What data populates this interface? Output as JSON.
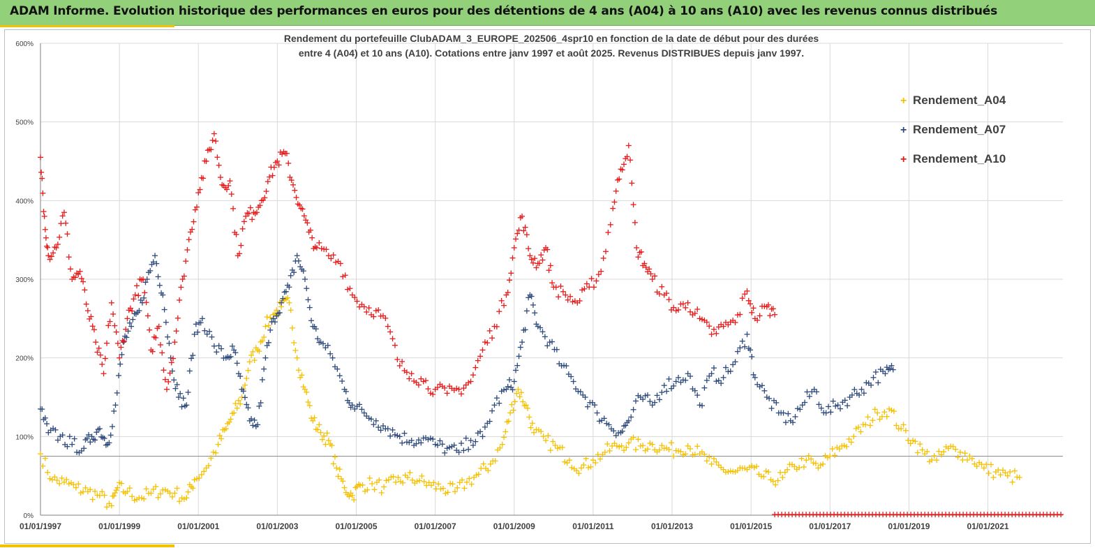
{
  "header": {
    "title": "ADAM Informe. Evolution historique des performances en euros pour des détentions de 4 ans (A04) à 10 ans (A10) avec les revenus connus distribués"
  },
  "chart_data": {
    "type": "scatter",
    "title_line1": "Rendement du portefeuille ClubADAM_3_EUROPE_202506_4spr10  en fonction de la date de début pour des durées",
    "title_line2": "entre 4 (A04) et 10 ans (A10). Cotations entre janv 1997 et août 2025. Revenus DISTRIBUES depuis janv 1997.",
    "xlabel": "",
    "ylabel": "",
    "x_ticks": [
      "01/01/1997",
      "01/01/1999",
      "01/01/2001",
      "01/01/2003",
      "01/01/2005",
      "01/01/2007",
      "01/01/2009",
      "01/01/2011",
      "01/01/2013",
      "01/01/2015",
      "01/01/2017",
      "01/01/2019",
      "01/01/2021"
    ],
    "x_range": [
      1997.0,
      2022.0
    ],
    "y_ticks": [
      "0%",
      "100%",
      "200%",
      "300%",
      "400%",
      "500%",
      "600%"
    ],
    "ylim": [
      0,
      600
    ],
    "reference_line_y": 75,
    "grid": true,
    "legend_position": "top-right",
    "marker": "+",
    "series": [
      {
        "name": "Rendement_A04",
        "color": "#f5c000",
        "x": [
          1997.0,
          1997.3,
          1997.6,
          1997.9,
          1998.2,
          1998.5,
          1998.8,
          1998.95,
          1999.2,
          1999.5,
          1999.8,
          2000.1,
          2000.4,
          2000.7,
          2000.9,
          2001.2,
          2001.5,
          2001.7,
          2001.9,
          2002.1,
          2002.3,
          2002.5,
          2002.7,
          2002.9,
          2003.1,
          2003.3,
          2003.5,
          2003.7,
          2003.9,
          2004.1,
          2004.3,
          2004.5,
          2004.7,
          2004.9,
          2005.1,
          2005.4,
          2005.7,
          2006.0,
          2006.3,
          2006.6,
          2006.9,
          2007.2,
          2007.5,
          2007.8,
          2008.1,
          2008.4,
          2008.7,
          2008.9,
          2009.1,
          2009.3,
          2009.5,
          2009.8,
          2010.1,
          2010.4,
          2010.7,
          2011.0,
          2011.3,
          2011.6,
          2011.9,
          2012.2,
          2012.5,
          2012.8,
          2013.1,
          2013.4,
          2013.7,
          2014.0,
          2014.3,
          2014.6,
          2014.9,
          2015.2,
          2015.5,
          2015.8,
          2016.1,
          2016.4,
          2016.7,
          2017.0,
          2017.3,
          2017.6,
          2017.9,
          2018.2,
          2018.5,
          2018.8,
          2019.1,
          2019.4,
          2019.7,
          2020.0,
          2020.3,
          2020.6,
          2020.9,
          2021.2,
          2021.5,
          2021.8
        ],
        "values": [
          78,
          45,
          42,
          35,
          30,
          25,
          12,
          35,
          30,
          22,
          28,
          32,
          28,
          22,
          45,
          60,
          90,
          110,
          130,
          150,
          195,
          210,
          240,
          255,
          265,
          270,
          200,
          160,
          120,
          105,
          95,
          60,
          35,
          25,
          38,
          40,
          36,
          42,
          48,
          44,
          38,
          34,
          30,
          42,
          52,
          65,
          90,
          130,
          160,
          140,
          105,
          95,
          85,
          70,
          60,
          70,
          80,
          88,
          92,
          88,
          90,
          85,
          82,
          88,
          78,
          65,
          58,
          55,
          58,
          52,
          45,
          48,
          62,
          70,
          60,
          75,
          88,
          100,
          115,
          130,
          135,
          110,
          95,
          78,
          70,
          85,
          80,
          72,
          60,
          55,
          50,
          48
        ]
      },
      {
        "name": "Rendement_A07",
        "color": "#2e4a7a",
        "x": [
          1997.0,
          1997.2,
          1997.5,
          1997.8,
          1998.1,
          1998.3,
          1998.5,
          1998.7,
          1998.9,
          1999.1,
          1999.3,
          1999.5,
          1999.7,
          1999.9,
          2000.1,
          2000.3,
          2000.5,
          2000.7,
          2000.9,
          2001.1,
          2001.4,
          2001.7,
          2001.9,
          2002.1,
          2002.3,
          2002.5,
          2002.7,
          2002.9,
          2003.1,
          2003.3,
          2003.5,
          2003.7,
          2003.9,
          2004.1,
          2004.4,
          2004.7,
          2004.9,
          2005.2,
          2005.5,
          2005.8,
          2006.1,
          2006.4,
          2006.7,
          2007.0,
          2007.3,
          2007.6,
          2007.9,
          2008.2,
          2008.5,
          2008.8,
          2009.0,
          2009.2,
          2009.4,
          2009.6,
          2009.9,
          2010.2,
          2010.5,
          2010.8,
          2011.1,
          2011.4,
          2011.7,
          2011.9,
          2012.2,
          2012.5,
          2012.8,
          2013.1,
          2013.4,
          2013.7,
          2014.0,
          2014.3,
          2014.6,
          2014.9,
          2015.1,
          2015.4,
          2015.7,
          2016.0,
          2016.3,
          2016.6,
          2016.9,
          2017.2,
          2017.5,
          2017.8,
          2018.1,
          2018.4,
          2018.6
        ],
        "values": [
          135,
          105,
          100,
          90,
          85,
          100,
          110,
          90,
          140,
          220,
          240,
          260,
          300,
          330,
          280,
          200,
          150,
          140,
          230,
          250,
          215,
          200,
          210,
          160,
          120,
          115,
          200,
          250,
          270,
          290,
          330,
          300,
          240,
          220,
          200,
          160,
          140,
          130,
          120,
          110,
          100,
          95,
          98,
          90,
          85,
          80,
          95,
          100,
          140,
          160,
          170,
          220,
          280,
          240,
          220,
          190,
          170,
          150,
          130,
          115,
          105,
          120,
          150,
          140,
          165,
          170,
          180,
          140,
          180,
          175,
          195,
          230,
          175,
          150,
          130,
          120,
          140,
          160,
          130,
          140,
          150,
          160,
          175,
          180,
          185
        ]
      },
      {
        "name": "Rendement_A10",
        "color": "#e81a1a",
        "x": [
          1997.0,
          1997.1,
          1997.2,
          1997.4,
          1997.6,
          1997.8,
          1998.0,
          1998.2,
          1998.4,
          1998.6,
          1998.8,
          1999.0,
          1999.2,
          1999.4,
          1999.6,
          1999.8,
          2000.0,
          2000.2,
          2000.4,
          2000.6,
          2000.8,
          2001.0,
          2001.2,
          2001.4,
          2001.6,
          2001.8,
          2002.0,
          2002.2,
          2002.4,
          2002.6,
          2002.8,
          2003.0,
          2003.2,
          2003.4,
          2003.6,
          2003.8,
          2004.0,
          2004.3,
          2004.6,
          2004.9,
          2005.2,
          2005.5,
          2005.8,
          2006.1,
          2006.4,
          2006.7,
          2007.0,
          2007.3,
          2007.6,
          2007.9,
          2008.2,
          2008.5,
          2008.8,
          2009.0,
          2009.2,
          2009.4,
          2009.6,
          2009.8,
          2010.0,
          2010.3,
          2010.6,
          2010.9,
          2011.2,
          2011.5,
          2011.7,
          2011.9,
          2012.1,
          2012.3,
          2012.5,
          2012.8,
          2013.1,
          2013.4,
          2013.7,
          2014.0,
          2014.3,
          2014.6,
          2014.9,
          2015.1,
          2015.4,
          2015.6
        ],
        "values": [
          455,
          380,
          330,
          340,
          385,
          300,
          310,
          260,
          220,
          180,
          270,
          200,
          250,
          280,
          300,
          210,
          240,
          160,
          220,
          300,
          360,
          410,
          450,
          485,
          420,
          425,
          330,
          380,
          385,
          400,
          430,
          450,
          460,
          420,
          390,
          360,
          340,
          330,
          320,
          280,
          265,
          260,
          240,
          190,
          180,
          170,
          160,
          155,
          160,
          170,
          210,
          240,
          280,
          340,
          380,
          330,
          320,
          340,
          290,
          280,
          270,
          290,
          310,
          390,
          440,
          470,
          340,
          320,
          300,
          280,
          260,
          270,
          250,
          230,
          240,
          245,
          285,
          250,
          265,
          255
        ]
      }
    ]
  }
}
